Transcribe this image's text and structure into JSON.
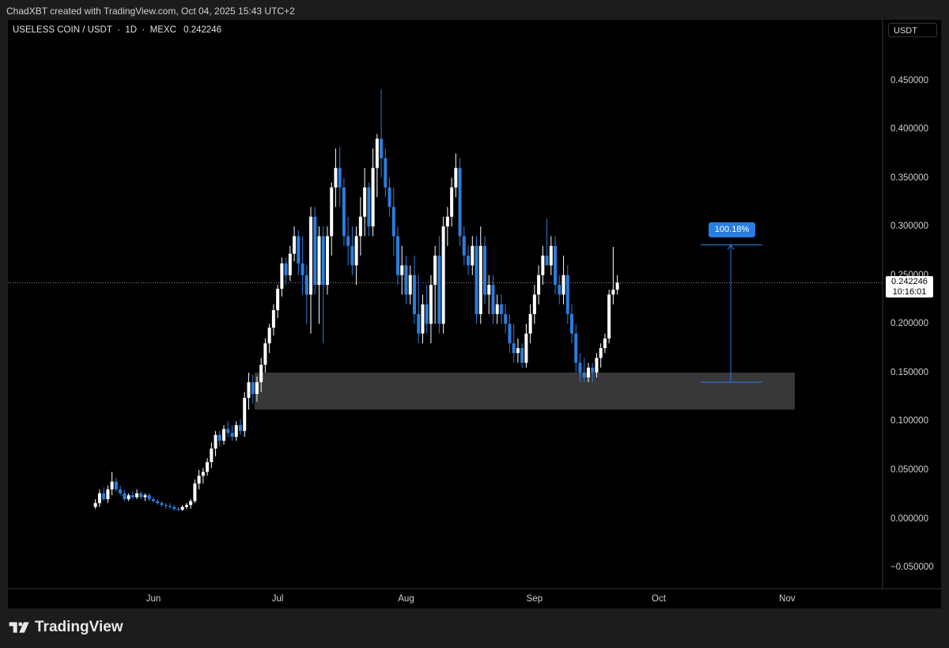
{
  "header": {
    "text": "ChadXBT created with TradingView.com, Oct 04, 2025 15:43 UTC+2"
  },
  "symbol": {
    "name": "USELESS COIN / USDT",
    "interval": "1D",
    "exchange": "MEXC",
    "last_value": "0.242246"
  },
  "price_axis": {
    "currency": "USDT",
    "ticks": [
      "0.450000",
      "0.400000",
      "0.350000",
      "0.300000",
      "0.250000",
      "0.200000",
      "0.150000",
      "0.100000",
      "0.050000",
      "0.000000",
      "−0.050000"
    ],
    "last_price_label": "0.242246",
    "countdown": "10:16:01"
  },
  "time_axis": {
    "ticks": [
      "Jun",
      "Jul",
      "Aug",
      "Sep",
      "Oct",
      "Nov"
    ]
  },
  "measure": {
    "label": "100.18%",
    "from": 0.14,
    "to": 0.281
  },
  "brand": {
    "name": "TradingView"
  },
  "colors": {
    "up": "#ffffff",
    "down": "#2b7ddc",
    "zone": "#38383b",
    "measure": "#2a7de1",
    "background": "#000000"
  },
  "chart_data": {
    "type": "candlestick",
    "title": "USELESS COIN / USDT · 1D · MEXC",
    "ylim": [
      -0.05,
      0.48
    ],
    "y_ticks": [
      -0.05,
      0,
      0.05,
      0.1,
      0.15,
      0.2,
      0.25,
      0.3,
      0.35,
      0.4,
      0.45
    ],
    "x_ticks": [
      "Jun",
      "Jul",
      "Aug",
      "Sep",
      "Oct",
      "Nov"
    ],
    "first_candle_date": "2025-05-18",
    "last_price": 0.242246,
    "support_zone": {
      "low": 0.112,
      "high": 0.15
    },
    "candles": [
      [
        0.012,
        0.02,
        0.01,
        0.016
      ],
      [
        0.016,
        0.03,
        0.012,
        0.026
      ],
      [
        0.026,
        0.032,
        0.018,
        0.02
      ],
      [
        0.02,
        0.034,
        0.016,
        0.03
      ],
      [
        0.03,
        0.048,
        0.024,
        0.038
      ],
      [
        0.038,
        0.042,
        0.028,
        0.03
      ],
      [
        0.03,
        0.034,
        0.024,
        0.026
      ],
      [
        0.026,
        0.03,
        0.018,
        0.02
      ],
      [
        0.02,
        0.026,
        0.018,
        0.024
      ],
      [
        0.024,
        0.028,
        0.02,
        0.022
      ],
      [
        0.022,
        0.03,
        0.02,
        0.026
      ],
      [
        0.026,
        0.028,
        0.02,
        0.022
      ],
      [
        0.022,
        0.026,
        0.018,
        0.024
      ],
      [
        0.024,
        0.026,
        0.018,
        0.02
      ],
      [
        0.02,
        0.022,
        0.016,
        0.018
      ],
      [
        0.018,
        0.02,
        0.014,
        0.016
      ],
      [
        0.016,
        0.018,
        0.012,
        0.014
      ],
      [
        0.014,
        0.016,
        0.01,
        0.013
      ],
      [
        0.013,
        0.016,
        0.01,
        0.012
      ],
      [
        0.012,
        0.014,
        0.008,
        0.01
      ],
      [
        0.01,
        0.012,
        0.008,
        0.009
      ],
      [
        0.009,
        0.014,
        0.008,
        0.012
      ],
      [
        0.012,
        0.016,
        0.01,
        0.014
      ],
      [
        0.014,
        0.02,
        0.01,
        0.018
      ],
      [
        0.018,
        0.04,
        0.016,
        0.036
      ],
      [
        0.036,
        0.05,
        0.03,
        0.044
      ],
      [
        0.044,
        0.052,
        0.036,
        0.048
      ],
      [
        0.048,
        0.062,
        0.044,
        0.058
      ],
      [
        0.058,
        0.078,
        0.052,
        0.072
      ],
      [
        0.072,
        0.09,
        0.064,
        0.086
      ],
      [
        0.086,
        0.09,
        0.074,
        0.08
      ],
      [
        0.08,
        0.096,
        0.076,
        0.092
      ],
      [
        0.092,
        0.1,
        0.084,
        0.088
      ],
      [
        0.088,
        0.096,
        0.08,
        0.084
      ],
      [
        0.084,
        0.1,
        0.08,
        0.096
      ],
      [
        0.096,
        0.102,
        0.086,
        0.09
      ],
      [
        0.09,
        0.13,
        0.084,
        0.124
      ],
      [
        0.124,
        0.15,
        0.112,
        0.14
      ],
      [
        0.14,
        0.148,
        0.118,
        0.128
      ],
      [
        0.128,
        0.146,
        0.12,
        0.14
      ],
      [
        0.14,
        0.165,
        0.13,
        0.158
      ],
      [
        0.158,
        0.185,
        0.15,
        0.18
      ],
      [
        0.18,
        0.2,
        0.17,
        0.196
      ],
      [
        0.196,
        0.22,
        0.188,
        0.214
      ],
      [
        0.214,
        0.24,
        0.206,
        0.236
      ],
      [
        0.236,
        0.268,
        0.228,
        0.262
      ],
      [
        0.262,
        0.268,
        0.24,
        0.25
      ],
      [
        0.25,
        0.28,
        0.244,
        0.272
      ],
      [
        0.272,
        0.3,
        0.264,
        0.29
      ],
      [
        0.29,
        0.296,
        0.25,
        0.262
      ],
      [
        0.262,
        0.29,
        0.23,
        0.25
      ],
      [
        0.25,
        0.26,
        0.2,
        0.23
      ],
      [
        0.23,
        0.32,
        0.19,
        0.31
      ],
      [
        0.31,
        0.32,
        0.23,
        0.24
      ],
      [
        0.24,
        0.3,
        0.2,
        0.29
      ],
      [
        0.29,
        0.3,
        0.18,
        0.24
      ],
      [
        0.24,
        0.3,
        0.23,
        0.29
      ],
      [
        0.29,
        0.345,
        0.27,
        0.34
      ],
      [
        0.34,
        0.38,
        0.32,
        0.36
      ],
      [
        0.36,
        0.382,
        0.32,
        0.34
      ],
      [
        0.34,
        0.35,
        0.28,
        0.29
      ],
      [
        0.29,
        0.31,
        0.26,
        0.28
      ],
      [
        0.28,
        0.3,
        0.25,
        0.26
      ],
      [
        0.26,
        0.3,
        0.24,
        0.29
      ],
      [
        0.29,
        0.33,
        0.27,
        0.31
      ],
      [
        0.31,
        0.36,
        0.29,
        0.34
      ],
      [
        0.34,
        0.345,
        0.29,
        0.3
      ],
      [
        0.3,
        0.38,
        0.29,
        0.36
      ],
      [
        0.36,
        0.395,
        0.33,
        0.39
      ],
      [
        0.39,
        0.441,
        0.35,
        0.37
      ],
      [
        0.37,
        0.38,
        0.33,
        0.34
      ],
      [
        0.34,
        0.35,
        0.31,
        0.32
      ],
      [
        0.32,
        0.34,
        0.27,
        0.29
      ],
      [
        0.29,
        0.3,
        0.24,
        0.25
      ],
      [
        0.25,
        0.28,
        0.23,
        0.26
      ],
      [
        0.26,
        0.27,
        0.22,
        0.23
      ],
      [
        0.23,
        0.26,
        0.22,
        0.25
      ],
      [
        0.25,
        0.27,
        0.2,
        0.21
      ],
      [
        0.21,
        0.25,
        0.18,
        0.19
      ],
      [
        0.19,
        0.23,
        0.18,
        0.22
      ],
      [
        0.22,
        0.24,
        0.19,
        0.2
      ],
      [
        0.2,
        0.25,
        0.18,
        0.24
      ],
      [
        0.24,
        0.28,
        0.2,
        0.27
      ],
      [
        0.27,
        0.29,
        0.19,
        0.2
      ],
      [
        0.2,
        0.31,
        0.19,
        0.3
      ],
      [
        0.3,
        0.32,
        0.28,
        0.31
      ],
      [
        0.31,
        0.35,
        0.3,
        0.34
      ],
      [
        0.34,
        0.375,
        0.33,
        0.36
      ],
      [
        0.36,
        0.37,
        0.28,
        0.29
      ],
      [
        0.29,
        0.3,
        0.26,
        0.27
      ],
      [
        0.27,
        0.28,
        0.25,
        0.26
      ],
      [
        0.26,
        0.29,
        0.25,
        0.28
      ],
      [
        0.28,
        0.29,
        0.2,
        0.21
      ],
      [
        0.21,
        0.3,
        0.2,
        0.28
      ],
      [
        0.28,
        0.29,
        0.22,
        0.23
      ],
      [
        0.23,
        0.25,
        0.21,
        0.24
      ],
      [
        0.24,
        0.25,
        0.2,
        0.21
      ],
      [
        0.21,
        0.23,
        0.2,
        0.22
      ],
      [
        0.22,
        0.23,
        0.2,
        0.21
      ],
      [
        0.21,
        0.22,
        0.19,
        0.2
      ],
      [
        0.2,
        0.21,
        0.17,
        0.18
      ],
      [
        0.18,
        0.2,
        0.16,
        0.17
      ],
      [
        0.17,
        0.185,
        0.16,
        0.175
      ],
      [
        0.175,
        0.18,
        0.155,
        0.16
      ],
      [
        0.16,
        0.2,
        0.155,
        0.19
      ],
      [
        0.19,
        0.22,
        0.18,
        0.21
      ],
      [
        0.21,
        0.24,
        0.2,
        0.23
      ],
      [
        0.23,
        0.26,
        0.22,
        0.25
      ],
      [
        0.25,
        0.28,
        0.24,
        0.27
      ],
      [
        0.27,
        0.308,
        0.26,
        0.26
      ],
      [
        0.26,
        0.29,
        0.25,
        0.28
      ],
      [
        0.28,
        0.29,
        0.23,
        0.24
      ],
      [
        0.24,
        0.25,
        0.22,
        0.23
      ],
      [
        0.23,
        0.27,
        0.22,
        0.25
      ],
      [
        0.25,
        0.26,
        0.2,
        0.21
      ],
      [
        0.21,
        0.22,
        0.18,
        0.19
      ],
      [
        0.19,
        0.2,
        0.15,
        0.16
      ],
      [
        0.16,
        0.17,
        0.14,
        0.15
      ],
      [
        0.15,
        0.165,
        0.14,
        0.145
      ],
      [
        0.145,
        0.16,
        0.14,
        0.155
      ],
      [
        0.155,
        0.16,
        0.14,
        0.15
      ],
      [
        0.15,
        0.17,
        0.145,
        0.165
      ],
      [
        0.165,
        0.18,
        0.155,
        0.175
      ],
      [
        0.175,
        0.19,
        0.17,
        0.185
      ],
      [
        0.185,
        0.235,
        0.18,
        0.23
      ],
      [
        0.23,
        0.279,
        0.22,
        0.235
      ],
      [
        0.235,
        0.25,
        0.23,
        0.242246
      ]
    ]
  }
}
